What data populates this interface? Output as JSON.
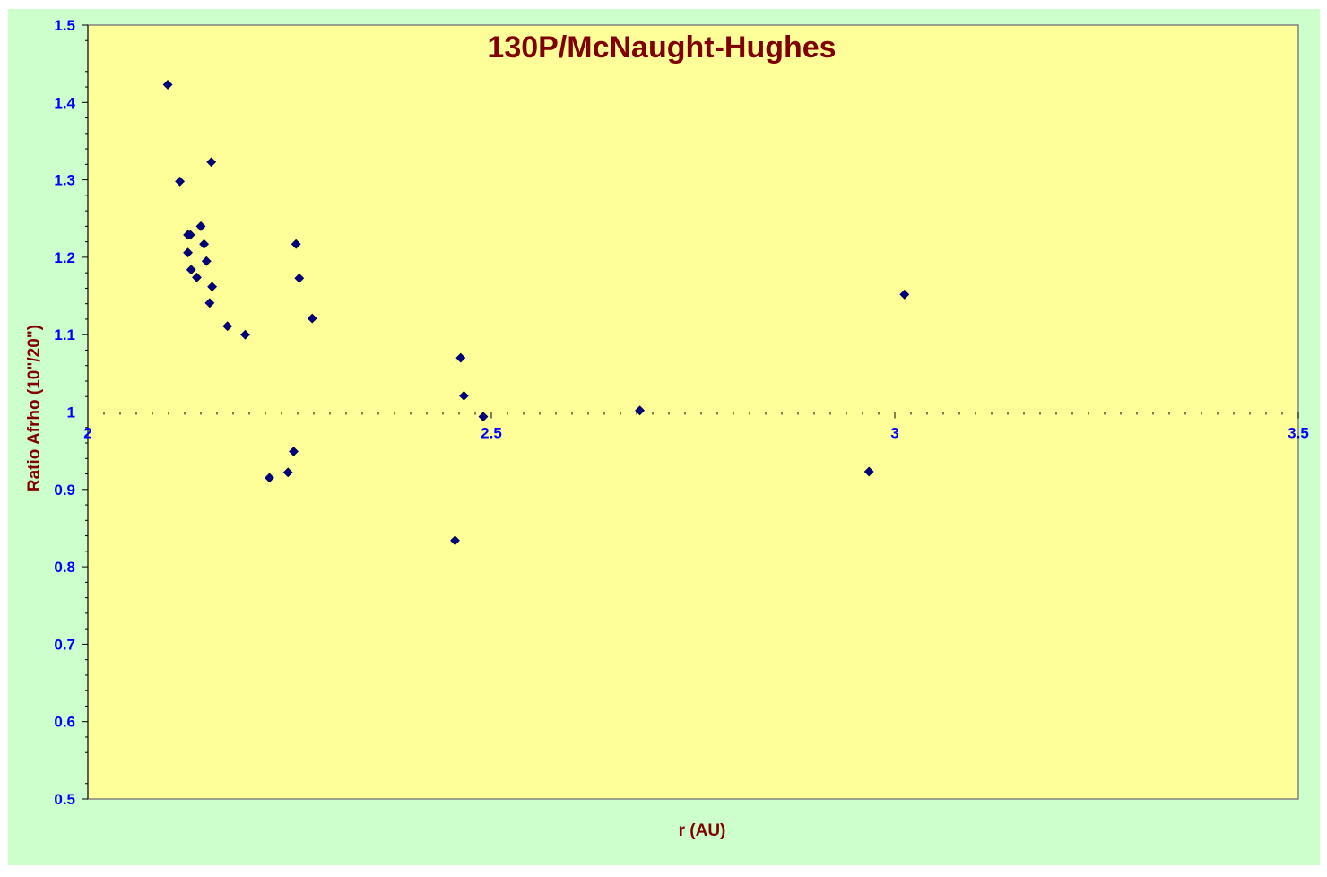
{
  "chart_data": {
    "type": "scatter",
    "title": "130P/McNaught-Hughes",
    "xlabel": "r (AU)",
    "ylabel": "Ratio Afrho (10\"/20\")",
    "xlim": [
      2,
      3.5
    ],
    "ylim": [
      0.5,
      1.5
    ],
    "x_ticks": [
      {
        "value": 2,
        "label": "2"
      },
      {
        "value": 2.5,
        "label": "2.5"
      },
      {
        "value": 3,
        "label": "3"
      },
      {
        "value": 3.5,
        "label": "3.5"
      }
    ],
    "y_ticks": [
      {
        "value": 0.5,
        "label": "0.5"
      },
      {
        "value": 0.6,
        "label": "0.6"
      },
      {
        "value": 0.7,
        "label": "0.7"
      },
      {
        "value": 0.8,
        "label": "0.8"
      },
      {
        "value": 0.9,
        "label": "0.9"
      },
      {
        "value": 1.0,
        "label": "1"
      },
      {
        "value": 1.1,
        "label": "1.1"
      },
      {
        "value": 1.2,
        "label": "1.2"
      },
      {
        "value": 1.3,
        "label": "1.3"
      },
      {
        "value": 1.4,
        "label": "1.4"
      },
      {
        "value": 1.5,
        "label": "1.5"
      }
    ],
    "x_axis_crosses_y": 1.0,
    "grid": false,
    "legend": "none",
    "series": [
      {
        "points": [
          {
            "x": 2.099,
            "y": 1.423
          },
          {
            "x": 2.114,
            "y": 1.298
          },
          {
            "x": 2.153,
            "y": 1.323
          },
          {
            "x": 2.14,
            "y": 1.24
          },
          {
            "x": 2.124,
            "y": 1.229
          },
          {
            "x": 2.127,
            "y": 1.229
          },
          {
            "x": 2.144,
            "y": 1.217
          },
          {
            "x": 2.124,
            "y": 1.206
          },
          {
            "x": 2.147,
            "y": 1.195
          },
          {
            "x": 2.128,
            "y": 1.184
          },
          {
            "x": 2.135,
            "y": 1.174
          },
          {
            "x": 2.154,
            "y": 1.162
          },
          {
            "x": 2.151,
            "y": 1.141
          },
          {
            "x": 2.173,
            "y": 1.111
          },
          {
            "x": 2.195,
            "y": 1.1
          },
          {
            "x": 2.258,
            "y": 1.217
          },
          {
            "x": 2.262,
            "y": 1.173
          },
          {
            "x": 2.278,
            "y": 1.121
          },
          {
            "x": 2.462,
            "y": 1.07
          },
          {
            "x": 2.466,
            "y": 1.021
          },
          {
            "x": 2.49,
            "y": 0.994
          },
          {
            "x": 2.684,
            "y": 1.002
          },
          {
            "x": 3.012,
            "y": 1.152
          },
          {
            "x": 2.225,
            "y": 0.915
          },
          {
            "x": 2.248,
            "y": 0.922
          },
          {
            "x": 2.255,
            "y": 0.949
          },
          {
            "x": 2.455,
            "y": 0.834
          },
          {
            "x": 2.968,
            "y": 0.923
          }
        ]
      }
    ],
    "colors": {
      "outer_background": "#ccffcc",
      "plot_background": "#ffff99",
      "title_color": "#800000",
      "axis_label_color": "#800000",
      "tick_label_color": "#0000ff",
      "marker_color": "#000080"
    }
  }
}
